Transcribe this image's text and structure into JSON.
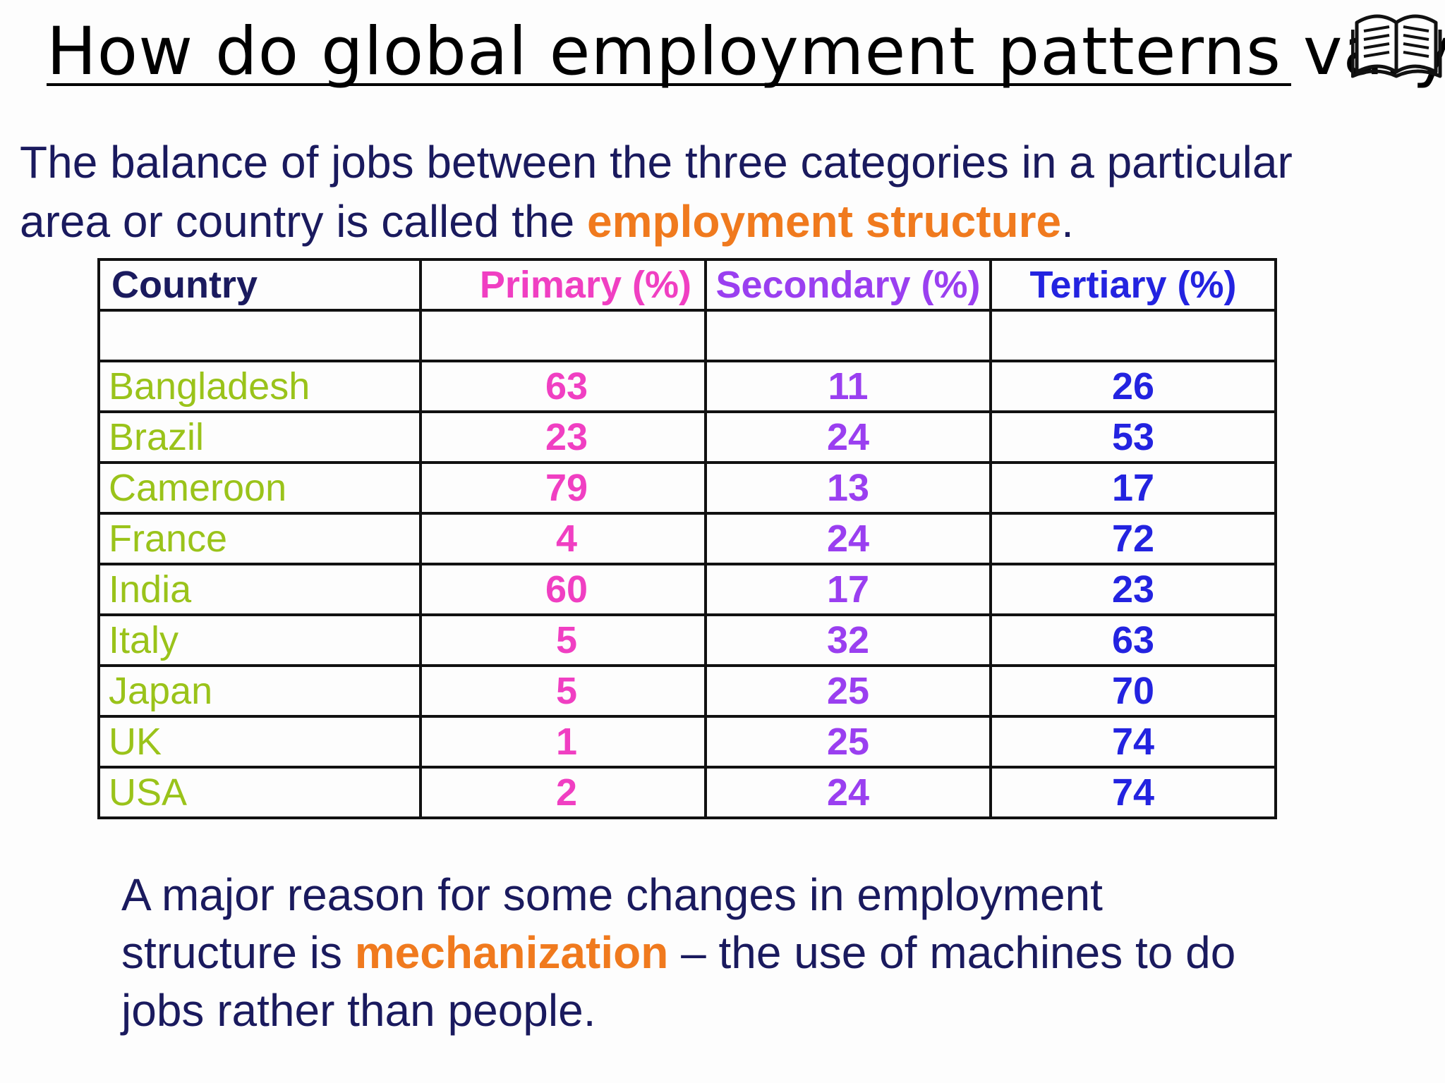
{
  "title": "How do global employment patterns vary?",
  "icons": {
    "book": "open-book-icon"
  },
  "intro": {
    "line1": "The balance of jobs between the three categories in a particular",
    "line2_before": "area or country is called the ",
    "line2_highlight": "employment structure",
    "line2_after": "."
  },
  "colors": {
    "heading_navy": "#1a1a5e",
    "accent_orange": "#f07a1e",
    "country_green": "#9ac31a",
    "primary_pink": "#f03fc2",
    "secondary_purple": "#9a3ff0",
    "tertiary_blue": "#2323e0"
  },
  "table": {
    "headers": {
      "country": "Country",
      "primary": "Primary (%)",
      "secondary": "Secondary (%)",
      "tertiary": "Tertiary (%)"
    },
    "rows": [
      {
        "country": "Bangladesh",
        "primary": "63",
        "secondary": "11",
        "tertiary": "26"
      },
      {
        "country": "Brazil",
        "primary": "23",
        "secondary": "24",
        "tertiary": "53"
      },
      {
        "country": "Cameroon",
        "primary": "79",
        "secondary": "13",
        "tertiary": "17"
      },
      {
        "country": "France",
        "primary": "4",
        "secondary": "24",
        "tertiary": "72"
      },
      {
        "country": "India",
        "primary": "60",
        "secondary": "17",
        "tertiary": "23"
      },
      {
        "country": "Italy",
        "primary": "5",
        "secondary": "32",
        "tertiary": "63"
      },
      {
        "country": "Japan",
        "primary": "5",
        "secondary": "25",
        "tertiary": "70"
      },
      {
        "country": "UK",
        "primary": "1",
        "secondary": "25",
        "tertiary": "74"
      },
      {
        "country": "USA",
        "primary": "2",
        "secondary": "24",
        "tertiary": "74"
      }
    ]
  },
  "closing": {
    "line1": "A major reason for some changes in employment",
    "line2_before": "structure is ",
    "line2_highlight": "mechanization",
    "line2_after": " – the use of machines to do",
    "line3": "jobs rather than people."
  }
}
